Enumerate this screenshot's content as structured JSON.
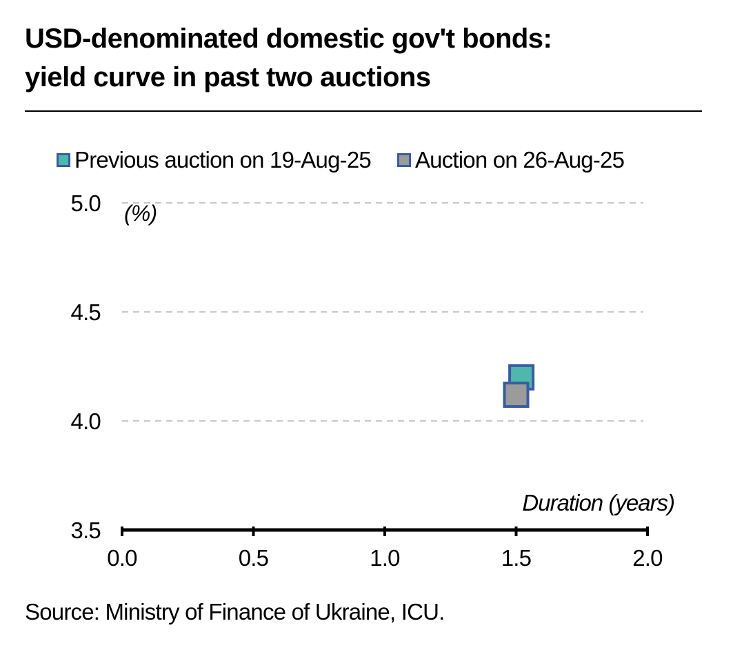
{
  "header": {
    "title_line1": "USD-denominated domestic gov't bonds:",
    "title_line2": "yield curve in past two auctions"
  },
  "source": "Source: Ministry of Finance of Ukraine, ICU.",
  "colors": {
    "previous": "#4fb8ad",
    "latest": "#9b9b9b",
    "marker_edge": "#3a5ba0",
    "grid": "#c8c8c8",
    "axis": "#000000"
  },
  "chart_data": {
    "type": "scatter",
    "title": "USD-denominated domestic gov't bonds: yield curve in past two auctions",
    "xlabel": "Duration (years)",
    "ylabel": "(%)",
    "xlim": [
      0.0,
      2.0
    ],
    "ylim": [
      3.5,
      5.0
    ],
    "x_ticks": [
      "0.0",
      "0.5",
      "1.0",
      "1.5",
      "2.0"
    ],
    "y_ticks": [
      "3.5",
      "4.0",
      "4.5",
      "5.0"
    ],
    "grid": true,
    "legend_position": "top",
    "series": [
      {
        "name": "Previous auction on 19-Aug-25",
        "points": [
          {
            "x": 1.52,
            "y": 4.2
          }
        ]
      },
      {
        "name": "Auction on 26-Aug-25",
        "points": [
          {
            "x": 1.5,
            "y": 4.12
          }
        ]
      }
    ]
  }
}
